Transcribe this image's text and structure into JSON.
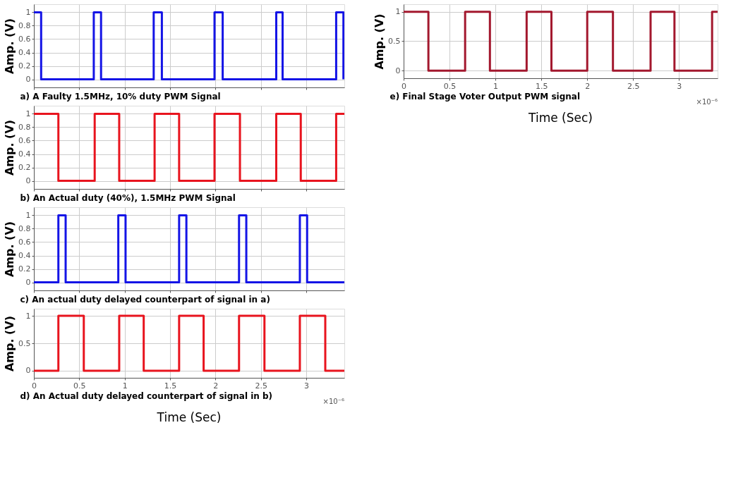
{
  "chart_data": [
    {
      "type": "line",
      "title": "a) A Faulty 1.5MHz, 10% duty PWM Signal",
      "ylabel": "Amp. (V)",
      "xlim": [
        0,
        3.42
      ],
      "xticks": [
        0,
        0.5,
        1,
        1.5,
        2,
        2.5,
        3
      ],
      "ylim": [
        -0.12,
        1.12
      ],
      "yticks": [
        0,
        0.2,
        0.4,
        0.6,
        0.8,
        1
      ],
      "grid": true,
      "tick_labels": "y",
      "series": [
        {
          "color": "#1414e6",
          "x": [
            0,
            0.08,
            0.08,
            0.66,
            0.66,
            0.74,
            0.74,
            1.32,
            1.32,
            1.41,
            1.41,
            1.99,
            1.99,
            2.08,
            2.08,
            2.67,
            2.67,
            2.74,
            2.74,
            3.33,
            3.33,
            3.41,
            3.41
          ],
          "values": [
            1,
            1,
            0,
            0,
            1,
            1,
            0,
            0,
            1,
            1,
            0,
            0,
            1,
            1,
            0,
            0,
            1,
            1,
            0,
            0,
            1,
            1,
            0
          ]
        }
      ]
    },
    {
      "type": "line",
      "title": "b) An Actual duty (40%), 1.5MHz PWM Signal",
      "ylabel": "Amp. (V)",
      "xlim": [
        0,
        3.42
      ],
      "xticks": [
        0,
        0.5,
        1,
        1.5,
        2,
        2.5,
        3
      ],
      "ylim": [
        -0.12,
        1.12
      ],
      "yticks": [
        0,
        0.2,
        0.4,
        0.6,
        0.8,
        1
      ],
      "grid": true,
      "tick_labels": "y",
      "series": [
        {
          "color": "#e8141e",
          "x": [
            0,
            0.27,
            0.27,
            0.67,
            0.67,
            0.94,
            0.94,
            1.33,
            1.33,
            1.6,
            1.6,
            1.99,
            1.99,
            2.27,
            2.27,
            2.67,
            2.67,
            2.94,
            2.94,
            3.33,
            3.33,
            3.42
          ],
          "values": [
            1,
            1,
            0,
            0,
            1,
            1,
            0,
            0,
            1,
            1,
            0,
            0,
            1,
            1,
            0,
            0,
            1,
            1,
            0,
            0,
            1,
            1
          ]
        }
      ]
    },
    {
      "type": "line",
      "title": "c) An actual duty delayed counterpart of signal in  a)",
      "ylabel": "Amp. (V)",
      "xlim": [
        0,
        3.42
      ],
      "xticks": [
        0,
        0.5,
        1,
        1.5,
        2,
        2.5,
        3
      ],
      "ylim": [
        -0.12,
        1.12
      ],
      "yticks": [
        0,
        0.2,
        0.4,
        0.6,
        0.8,
        1
      ],
      "grid": true,
      "tick_labels": "y",
      "series": [
        {
          "color": "#1414e6",
          "x": [
            0,
            0.27,
            0.27,
            0.35,
            0.35,
            0.93,
            0.93,
            1.01,
            1.01,
            1.6,
            1.6,
            1.68,
            1.68,
            2.26,
            2.26,
            2.34,
            2.34,
            2.93,
            2.93,
            3.01,
            3.01,
            3.42
          ],
          "values": [
            0,
            0,
            1,
            1,
            0,
            0,
            1,
            1,
            0,
            0,
            1,
            1,
            0,
            0,
            1,
            1,
            0,
            0,
            1,
            1,
            0,
            0
          ]
        }
      ]
    },
    {
      "type": "line",
      "title": "d) An Actual duty delayed  counterpart of signal in b)",
      "xlabel": "Time (Sec)",
      "ylabel": "Amp. (V)",
      "annotations": [
        "×10⁻⁶"
      ],
      "xlim": [
        0,
        3.42
      ],
      "xticks": [
        0,
        0.5,
        1,
        1.5,
        2,
        2.5,
        3
      ],
      "ylim": [
        -0.13,
        1.13
      ],
      "yticks": [
        0,
        0.5,
        1
      ],
      "grid": true,
      "series": [
        {
          "color": "#e8141e",
          "x": [
            0,
            0.27,
            0.27,
            0.55,
            0.55,
            0.94,
            0.94,
            1.21,
            1.21,
            1.6,
            1.6,
            1.87,
            1.87,
            2.26,
            2.26,
            2.54,
            2.54,
            2.93,
            2.93,
            3.21,
            3.21,
            3.42
          ],
          "values": [
            0,
            0,
            1,
            1,
            0,
            0,
            1,
            1,
            0,
            0,
            1,
            1,
            0,
            0,
            1,
            1,
            0,
            0,
            1,
            1,
            0,
            0
          ]
        }
      ]
    },
    {
      "type": "line",
      "title": "e) Final Stage Voter Output PWM signal",
      "xlabel": "Time (Sec)",
      "ylabel": "Amp. (V)",
      "annotations": [
        "×10⁻⁶"
      ],
      "xlim": [
        0,
        3.42
      ],
      "xticks": [
        0,
        0.5,
        1,
        1.5,
        2,
        2.5,
        3
      ],
      "ylim": [
        -0.13,
        1.13
      ],
      "yticks": [
        0,
        0.5,
        1
      ],
      "grid": true,
      "series": [
        {
          "color": "#a3182e",
          "x": [
            0,
            0.27,
            0.27,
            0.67,
            0.67,
            0.94,
            0.94,
            1.34,
            1.34,
            1.61,
            1.61,
            2.0,
            2.0,
            2.28,
            2.28,
            2.69,
            2.69,
            2.95,
            2.95,
            3.36,
            3.36,
            3.42
          ],
          "values": [
            1,
            1,
            0,
            0,
            1,
            1,
            0,
            0,
            1,
            1,
            0,
            0,
            1,
            1,
            0,
            0,
            1,
            1,
            0,
            0,
            1,
            1
          ]
        }
      ]
    }
  ]
}
